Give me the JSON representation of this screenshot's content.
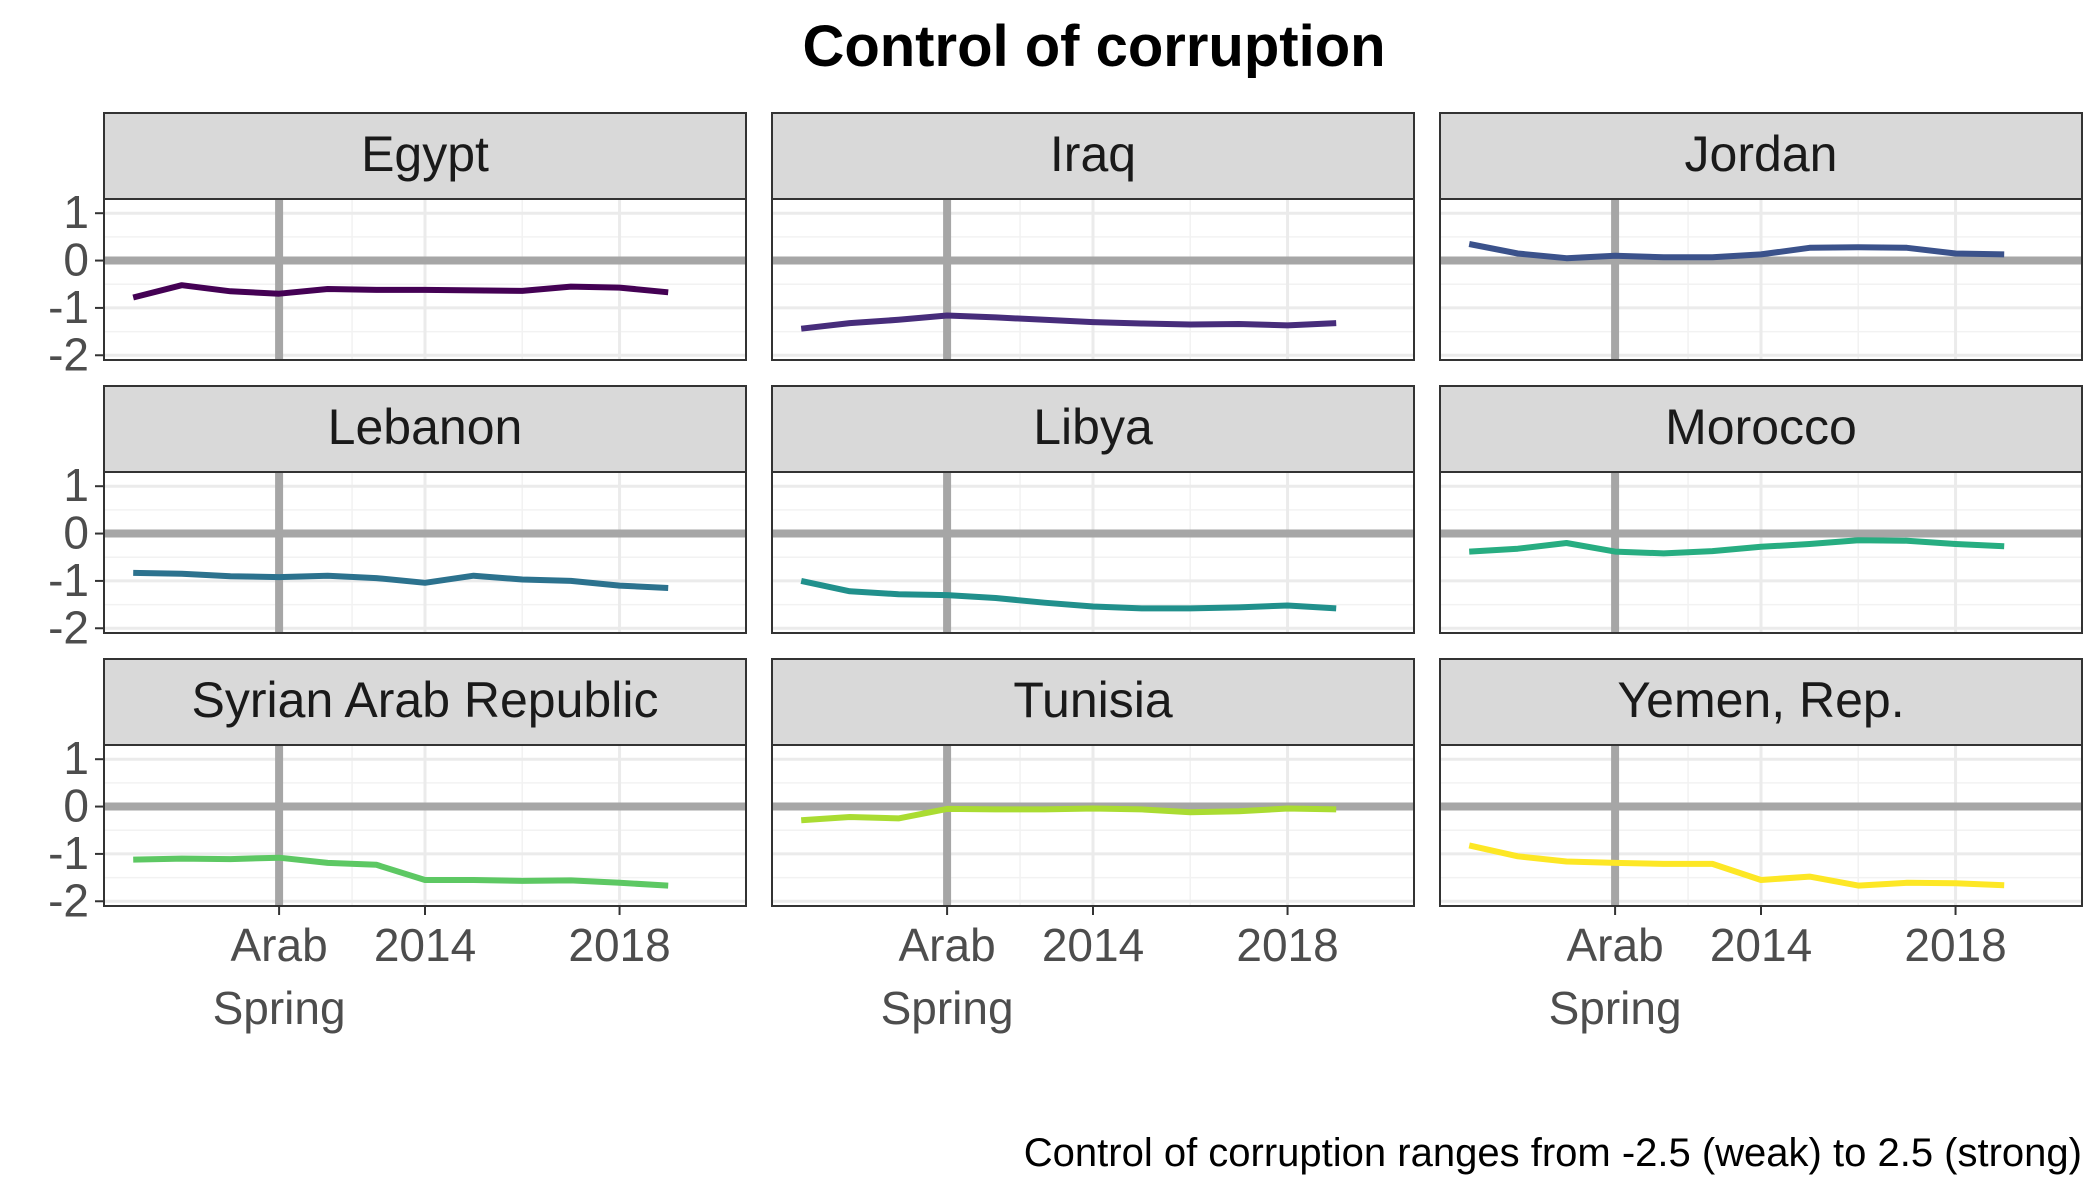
{
  "chart_data": {
    "type": "line",
    "title": "Control of corruption",
    "caption": "Control of corruption ranges from -2.5 (weak) to 2.5 (strong)",
    "ylim": [
      -2.1,
      1.3
    ],
    "xlim": [
      2007.4,
      2020.6
    ],
    "y_ticks": [
      1,
      0,
      -1,
      -2
    ],
    "x_ticks": [
      {
        "value": 2011,
        "label": [
          "Arab",
          "Spring"
        ]
      },
      {
        "value": 2014,
        "label": [
          "2014"
        ]
      },
      {
        "value": 2018,
        "label": [
          "2018"
        ]
      }
    ],
    "reference_lines": {
      "x": 2011,
      "y": 0
    },
    "years": [
      2008,
      2009,
      2010,
      2011,
      2012,
      2013,
      2014,
      2015,
      2016,
      2017,
      2018,
      2019
    ],
    "panels": [
      {
        "name": "Egypt",
        "color": "#440154",
        "values": [
          -0.78,
          -0.52,
          -0.65,
          -0.7,
          -0.6,
          -0.62,
          -0.62,
          -0.63,
          -0.64,
          -0.55,
          -0.57,
          -0.67
        ]
      },
      {
        "name": "Iraq",
        "color": "#472D7B",
        "values": [
          -1.44,
          -1.32,
          -1.25,
          -1.16,
          -1.2,
          -1.25,
          -1.3,
          -1.33,
          -1.35,
          -1.34,
          -1.37,
          -1.32
        ]
      },
      {
        "name": "Jordan",
        "color": "#3B528B",
        "values": [
          0.35,
          0.15,
          0.05,
          0.1,
          0.07,
          0.07,
          0.13,
          0.27,
          0.28,
          0.27,
          0.15,
          0.13
        ]
      },
      {
        "name": "Lebanon",
        "color": "#2C728E",
        "values": [
          -0.83,
          -0.85,
          -0.9,
          -0.92,
          -0.89,
          -0.94,
          -1.04,
          -0.89,
          -0.97,
          -1.0,
          -1.1,
          -1.15
        ]
      },
      {
        "name": "Libya",
        "color": "#21908C",
        "values": [
          -1.0,
          -1.22,
          -1.28,
          -1.3,
          -1.36,
          -1.46,
          -1.54,
          -1.58,
          -1.58,
          -1.56,
          -1.52,
          -1.58
        ]
      },
      {
        "name": "Morocco",
        "color": "#27AD81",
        "values": [
          -0.38,
          -0.32,
          -0.2,
          -0.38,
          -0.42,
          -0.37,
          -0.28,
          -0.22,
          -0.14,
          -0.15,
          -0.22,
          -0.27
        ]
      },
      {
        "name": "Syrian Arab Republic",
        "color": "#5DC863",
        "values": [
          -1.12,
          -1.1,
          -1.11,
          -1.08,
          -1.19,
          -1.23,
          -1.55,
          -1.55,
          -1.57,
          -1.56,
          -1.61,
          -1.67
        ]
      },
      {
        "name": "Tunisia",
        "color": "#AADC32",
        "values": [
          -0.29,
          -0.22,
          -0.25,
          -0.05,
          -0.06,
          -0.06,
          -0.04,
          -0.06,
          -0.12,
          -0.1,
          -0.04,
          -0.06
        ]
      },
      {
        "name": "Yemen, Rep.",
        "color": "#FDE725",
        "values": [
          -0.82,
          -1.05,
          -1.16,
          -1.19,
          -1.21,
          -1.21,
          -1.55,
          -1.48,
          -1.67,
          -1.61,
          -1.62,
          -1.66
        ]
      }
    ]
  }
}
